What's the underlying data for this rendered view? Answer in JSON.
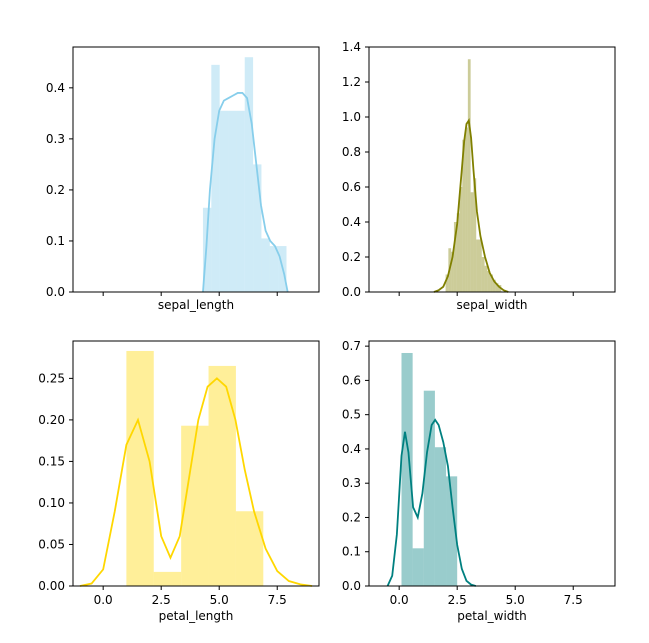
{
  "figure": {
    "background": "#ffffff"
  },
  "chart_data": [
    {
      "type": "histogram+kde",
      "xlabel": "sepal_length",
      "ylabel": "",
      "xlim": [
        -1.3,
        9.3
      ],
      "ylim": [
        0,
        0.48
      ],
      "x_ticks": [
        0,
        2.5,
        5,
        7.5
      ],
      "x_tick_labels_visible": false,
      "y_ticks": [
        0.0,
        0.1,
        0.2,
        0.3,
        0.4
      ],
      "y_tick_labels": [
        "0.0",
        "0.1",
        "0.2",
        "0.3",
        "0.4"
      ],
      "color": "#87ceeb",
      "bar_opacity": 0.4,
      "histogram": {
        "bins": [
          {
            "x0": 4.3,
            "x1": 4.66,
            "height": 0.165
          },
          {
            "x0": 4.66,
            "x1": 5.02,
            "height": 0.445
          },
          {
            "x0": 5.02,
            "x1": 5.38,
            "height": 0.355
          },
          {
            "x0": 5.38,
            "x1": 5.74,
            "height": 0.355
          },
          {
            "x0": 5.74,
            "x1": 6.1,
            "height": 0.355
          },
          {
            "x0": 6.1,
            "x1": 6.46,
            "height": 0.46
          },
          {
            "x0": 6.46,
            "x1": 6.82,
            "height": 0.25
          },
          {
            "x0": 6.82,
            "x1": 7.18,
            "height": 0.105
          },
          {
            "x0": 7.18,
            "x1": 7.54,
            "height": 0.09
          },
          {
            "x0": 7.54,
            "x1": 7.9,
            "height": 0.09
          }
        ]
      },
      "kde": {
        "x": [
          4.3,
          4.45,
          4.6,
          4.8,
          5.0,
          5.2,
          5.4,
          5.6,
          5.8,
          6.0,
          6.2,
          6.4,
          6.6,
          6.8,
          7.0,
          7.2,
          7.4,
          7.6,
          7.8,
          7.95
        ],
        "y": [
          0.0,
          0.09,
          0.2,
          0.3,
          0.355,
          0.375,
          0.38,
          0.385,
          0.39,
          0.39,
          0.38,
          0.33,
          0.25,
          0.17,
          0.12,
          0.1,
          0.09,
          0.07,
          0.035,
          0.0
        ]
      }
    },
    {
      "type": "histogram+kde",
      "xlabel": "sepal_width",
      "ylabel": "",
      "xlim": [
        -1.3,
        9.3
      ],
      "ylim": [
        0,
        1.4
      ],
      "x_ticks": [
        0,
        2.5,
        5,
        7.5
      ],
      "x_tick_labels_visible": false,
      "y_ticks": [
        0.0,
        0.2,
        0.4,
        0.6,
        0.8,
        1.0,
        1.2,
        1.4
      ],
      "y_tick_labels": [
        "0.0",
        "0.2",
        "0.4",
        "0.6",
        "0.8",
        "1.0",
        "1.2",
        "1.4"
      ],
      "color": "#808000",
      "bar_opacity": 0.4,
      "histogram": {
        "bins": [
          {
            "x0": 2.0,
            "x1": 2.12,
            "height": 0.1
          },
          {
            "x0": 2.12,
            "x1": 2.24,
            "height": 0.25
          },
          {
            "x0": 2.24,
            "x1": 2.36,
            "height": 0.23
          },
          {
            "x0": 2.36,
            "x1": 2.48,
            "height": 0.4
          },
          {
            "x0": 2.48,
            "x1": 2.6,
            "height": 0.45
          },
          {
            "x0": 2.6,
            "x1": 2.72,
            "height": 0.6
          },
          {
            "x0": 2.72,
            "x1": 2.84,
            "height": 0.87
          },
          {
            "x0": 2.84,
            "x1": 2.96,
            "height": 0.94
          },
          {
            "x0": 2.96,
            "x1": 3.08,
            "height": 1.33
          },
          {
            "x0": 3.08,
            "x1": 3.2,
            "height": 0.57
          },
          {
            "x0": 3.2,
            "x1": 3.32,
            "height": 0.65
          },
          {
            "x0": 3.32,
            "x1": 3.44,
            "height": 0.3
          },
          {
            "x0": 3.44,
            "x1": 3.56,
            "height": 0.3
          },
          {
            "x0": 3.56,
            "x1": 3.68,
            "height": 0.2
          },
          {
            "x0": 3.68,
            "x1": 3.8,
            "height": 0.15
          },
          {
            "x0": 3.8,
            "x1": 3.92,
            "height": 0.12
          },
          {
            "x0": 3.92,
            "x1": 4.04,
            "height": 0.1
          },
          {
            "x0": 4.04,
            "x1": 4.16,
            "height": 0.07
          },
          {
            "x0": 4.16,
            "x1": 4.28,
            "height": 0.05
          },
          {
            "x0": 4.28,
            "x1": 4.4,
            "height": 0.04
          }
        ]
      },
      "kde": {
        "x": [
          1.5,
          1.7,
          1.9,
          2.1,
          2.3,
          2.5,
          2.7,
          2.8,
          2.9,
          3.0,
          3.1,
          3.2,
          3.35,
          3.5,
          3.7,
          3.9,
          4.1,
          4.3,
          4.5,
          4.7
        ],
        "y": [
          0.0,
          0.01,
          0.03,
          0.09,
          0.2,
          0.39,
          0.7,
          0.86,
          0.96,
          0.98,
          0.88,
          0.7,
          0.46,
          0.32,
          0.2,
          0.11,
          0.06,
          0.03,
          0.01,
          0.0
        ]
      }
    },
    {
      "type": "histogram+kde",
      "xlabel": "petal_length",
      "ylabel": "",
      "xlim": [
        -1.3,
        9.3
      ],
      "ylim": [
        0,
        0.295
      ],
      "x_ticks": [
        0,
        2.5,
        5,
        7.5
      ],
      "x_tick_labels": [
        "0.0",
        "2.5",
        "5.0",
        "7.5"
      ],
      "y_ticks": [
        0.0,
        0.05,
        0.1,
        0.15,
        0.2,
        0.25
      ],
      "y_tick_labels": [
        "0.00",
        "0.05",
        "0.10",
        "0.15",
        "0.20",
        "0.25"
      ],
      "color": "#ffd700",
      "bar_opacity": 0.4,
      "histogram": {
        "bins": [
          {
            "x0": 1.0,
            "x1": 2.18,
            "height": 0.283
          },
          {
            "x0": 2.18,
            "x1": 3.36,
            "height": 0.017
          },
          {
            "x0": 3.36,
            "x1": 4.54,
            "height": 0.193
          },
          {
            "x0": 4.54,
            "x1": 5.72,
            "height": 0.265
          },
          {
            "x0": 5.72,
            "x1": 6.9,
            "height": 0.09
          }
        ]
      },
      "kde": {
        "x": [
          -1.0,
          -0.5,
          0.0,
          0.5,
          1.0,
          1.5,
          2.0,
          2.5,
          2.9,
          3.3,
          3.7,
          4.1,
          4.5,
          4.9,
          5.3,
          5.7,
          6.1,
          6.5,
          7.0,
          7.5,
          8.0,
          8.5,
          9.0
        ],
        "y": [
          0.0,
          0.003,
          0.02,
          0.09,
          0.17,
          0.2,
          0.15,
          0.06,
          0.034,
          0.06,
          0.13,
          0.2,
          0.24,
          0.25,
          0.24,
          0.2,
          0.14,
          0.09,
          0.045,
          0.018,
          0.006,
          0.002,
          0.0
        ]
      }
    },
    {
      "type": "histogram+kde",
      "xlabel": "petal_width",
      "ylabel": "",
      "xlim": [
        -1.3,
        9.3
      ],
      "ylim": [
        0,
        0.715
      ],
      "x_ticks": [
        0,
        2.5,
        5,
        7.5
      ],
      "x_tick_labels": [
        "0.0",
        "2.5",
        "5.0",
        "7.5"
      ],
      "y_ticks": [
        0.0,
        0.1,
        0.2,
        0.3,
        0.4,
        0.5,
        0.6,
        0.7
      ],
      "y_tick_labels": [
        "0.0",
        "0.1",
        "0.2",
        "0.3",
        "0.4",
        "0.5",
        "0.6",
        "0.7"
      ],
      "color": "#008080",
      "bar_opacity": 0.4,
      "histogram": {
        "bins": [
          {
            "x0": 0.1,
            "x1": 0.58,
            "height": 0.68
          },
          {
            "x0": 0.58,
            "x1": 1.06,
            "height": 0.11
          },
          {
            "x0": 1.06,
            "x1": 1.54,
            "height": 0.57
          },
          {
            "x0": 1.54,
            "x1": 2.02,
            "height": 0.405
          },
          {
            "x0": 2.02,
            "x1": 2.5,
            "height": 0.32
          }
        ]
      },
      "kde": {
        "x": [
          -0.5,
          -0.3,
          -0.1,
          0.1,
          0.25,
          0.4,
          0.6,
          0.8,
          1.0,
          1.2,
          1.4,
          1.55,
          1.7,
          1.9,
          2.1,
          2.3,
          2.5,
          2.7,
          2.9,
          3.1,
          3.3
        ],
        "y": [
          0.0,
          0.03,
          0.15,
          0.38,
          0.45,
          0.39,
          0.23,
          0.2,
          0.27,
          0.39,
          0.47,
          0.485,
          0.47,
          0.42,
          0.35,
          0.23,
          0.12,
          0.05,
          0.015,
          0.004,
          0.0
        ]
      }
    }
  ]
}
